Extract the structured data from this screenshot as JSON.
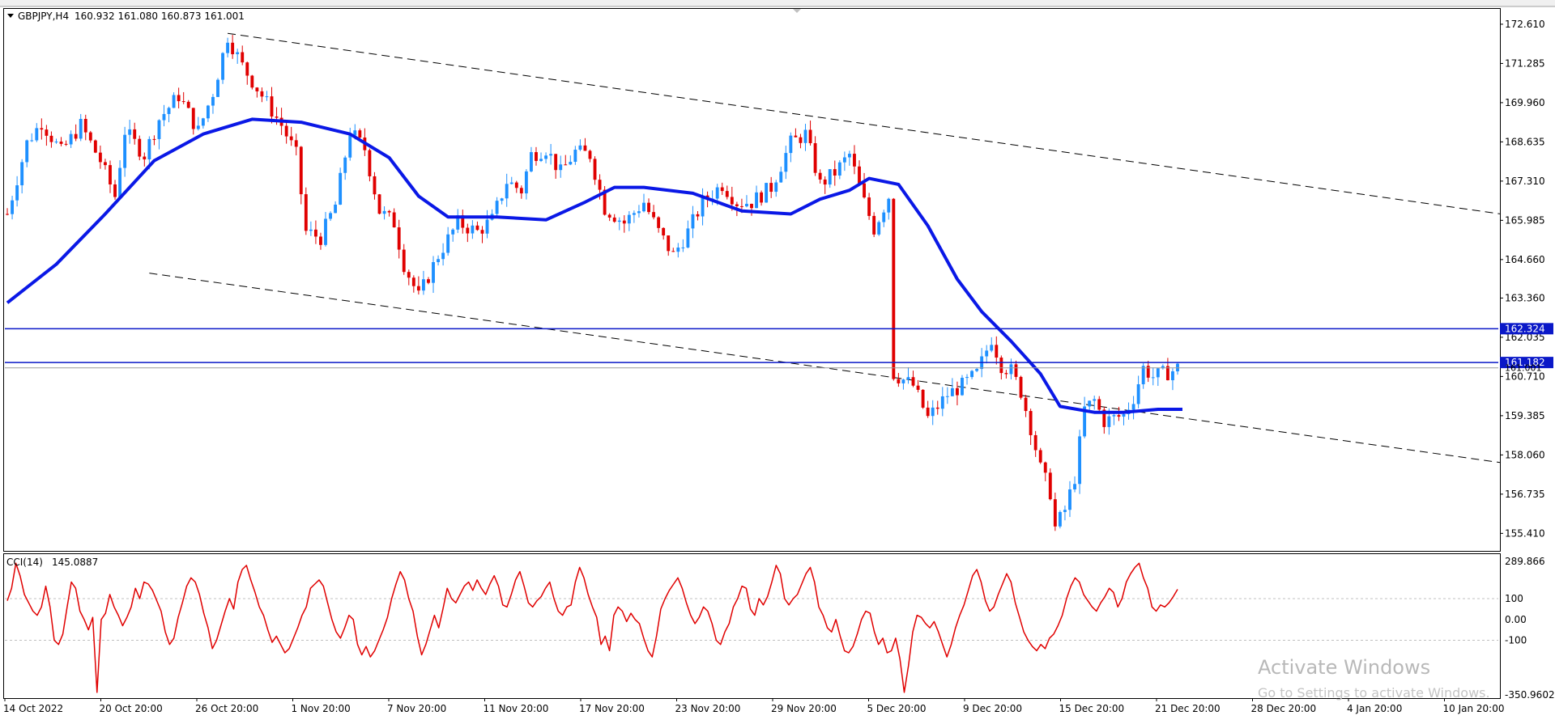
{
  "header": {
    "symbol_line": "GBPJPY,H4",
    "ohlc": "160.932 161.080 160.873 161.001"
  },
  "watermark": {
    "title": "Activate Windows",
    "subtitle": "Go to Settings to activate Windows."
  },
  "chart_data": [
    {
      "type": "candlestick",
      "symbol": "GBPJPY",
      "timeframe": "H4",
      "ylim": [
        154.9,
        173.1
      ],
      "y_ticks": [
        "172.610",
        "171.285",
        "169.960",
        "168.635",
        "167.310",
        "165.985",
        "164.660",
        "163.360",
        "162.035",
        "160.710",
        "159.385",
        "158.060",
        "156.735",
        "155.410"
      ],
      "x_ticks": [
        "14 Oct 2022",
        "20 Oct 20:00",
        "26 Oct 20:00",
        "1 Nov 20:00",
        "7 Nov 20:00",
        "11 Nov 20:00",
        "17 Nov 20:00",
        "23 Nov 20:00",
        "29 Nov 20:00",
        "5 Dec 20:00",
        "9 Dec 20:00",
        "15 Dec 20:00",
        "21 Dec 20:00",
        "28 Dec 20:00",
        "4 Jan 20:00",
        "10 Jan 20:00"
      ],
      "price_path": [
        [
          0,
          166.2
        ],
        [
          4,
          168.6
        ],
        [
          7,
          169.3
        ],
        [
          11,
          168.3
        ],
        [
          15,
          169.2
        ],
        [
          19,
          168.0
        ],
        [
          22,
          166.8
        ],
        [
          24,
          169.0
        ],
        [
          28,
          168.2
        ],
        [
          31,
          169.4
        ],
        [
          35,
          170.2
        ],
        [
          39,
          169.0
        ],
        [
          42,
          170.3
        ],
        [
          45,
          172.2
        ],
        [
          48,
          171.2
        ],
        [
          52,
          170.2
        ],
        [
          56,
          169.2
        ],
        [
          59,
          168.2
        ],
        [
          61,
          165.6
        ],
        [
          64,
          165.4
        ],
        [
          67,
          166.5
        ],
        [
          70,
          169.0
        ],
        [
          73,
          168.4
        ],
        [
          76,
          166.3
        ],
        [
          79,
          165.9
        ],
        [
          81,
          164.5
        ],
        [
          84,
          163.4
        ],
        [
          88,
          164.8
        ],
        [
          92,
          165.9
        ],
        [
          96,
          165.6
        ],
        [
          99,
          166.0
        ],
        [
          102,
          167.3
        ],
        [
          105,
          167.0
        ],
        [
          107,
          168.2
        ],
        [
          110,
          168.4
        ],
        [
          113,
          167.6
        ],
        [
          116,
          168.3
        ],
        [
          119,
          168.2
        ],
        [
          122,
          166.4
        ],
        [
          126,
          165.9
        ],
        [
          130,
          166.6
        ],
        [
          133,
          165.6
        ],
        [
          136,
          164.8
        ],
        [
          139,
          165.6
        ],
        [
          142,
          166.6
        ],
        [
          146,
          167.2
        ],
        [
          149,
          166.6
        ],
        [
          152,
          166.6
        ],
        [
          156,
          167.1
        ],
        [
          160,
          168.6
        ],
        [
          163,
          168.9
        ],
        [
          166,
          167.2
        ],
        [
          169,
          167.6
        ],
        [
          172,
          168.2
        ],
        [
          175,
          166.6
        ],
        [
          177,
          165.7
        ],
        [
          180,
          166.8
        ],
        [
          181,
          160.8
        ],
        [
          185,
          160.4
        ],
        [
          188,
          159.3
        ],
        [
          192,
          160.1
        ],
        [
          195,
          160.4
        ],
        [
          198,
          160.8
        ],
        [
          201,
          162.0
        ],
        [
          203,
          161.1
        ],
        [
          205,
          160.9
        ],
        [
          207,
          160.2
        ],
        [
          209,
          159.0
        ],
        [
          211,
          157.6
        ],
        [
          213,
          156.8
        ],
        [
          214,
          155.6
        ],
        [
          216,
          156.2
        ],
        [
          218,
          157.3
        ],
        [
          220,
          159.6
        ],
        [
          222,
          159.9
        ],
        [
          224,
          159.2
        ],
        [
          226,
          159.3
        ],
        [
          228,
          159.4
        ],
        [
          230,
          160.0
        ],
        [
          232,
          161.0
        ],
        [
          234,
          160.7
        ],
        [
          236,
          160.8
        ],
        [
          238,
          160.9
        ],
        [
          239,
          161.0
        ]
      ],
      "moving_average": {
        "label": "MA",
        "points": [
          [
            0,
            163.2
          ],
          [
            10,
            164.5
          ],
          [
            20,
            166.2
          ],
          [
            30,
            168.0
          ],
          [
            40,
            168.9
          ],
          [
            50,
            169.4
          ],
          [
            60,
            169.3
          ],
          [
            70,
            168.9
          ],
          [
            78,
            168.1
          ],
          [
            84,
            166.8
          ],
          [
            90,
            166.1
          ],
          [
            100,
            166.1
          ],
          [
            110,
            166.0
          ],
          [
            118,
            166.6
          ],
          [
            124,
            167.1
          ],
          [
            130,
            167.1
          ],
          [
            140,
            166.9
          ],
          [
            150,
            166.3
          ],
          [
            160,
            166.2
          ],
          [
            166,
            166.7
          ],
          [
            172,
            167.0
          ],
          [
            176,
            167.4
          ],
          [
            182,
            167.2
          ],
          [
            188,
            165.8
          ],
          [
            194,
            164.0
          ],
          [
            199,
            162.9
          ],
          [
            205,
            161.9
          ],
          [
            211,
            160.8
          ],
          [
            215,
            159.7
          ],
          [
            222,
            159.5
          ],
          [
            228,
            159.5
          ],
          [
            235,
            159.6
          ],
          [
            240,
            159.6
          ]
        ]
      },
      "horizontal_levels": [
        {
          "label": "162.324",
          "value": 162.324
        },
        {
          "label": "161.182",
          "value": 161.182
        },
        {
          "label": "161.001",
          "value": 161.001
        }
      ],
      "trendlines": [
        {
          "from": [
            45,
            172.3
          ],
          "to": [
            305,
            166.2
          ]
        },
        {
          "from": [
            29,
            164.2
          ],
          "to": [
            305,
            157.8
          ]
        }
      ]
    },
    {
      "type": "line",
      "indicator": "CCI(14)",
      "current_value": "145.0887",
      "ylim": [
        -370,
        310
      ],
      "y_ticks": [
        "289.866",
        "100",
        "0.00",
        "-100",
        "-350.9602"
      ],
      "levels": [
        100,
        -100
      ],
      "values": [
        90,
        150,
        270,
        210,
        120,
        80,
        40,
        20,
        60,
        160,
        60,
        -100,
        -120,
        -70,
        60,
        180,
        150,
        40,
        0,
        -50,
        10,
        -350,
        0,
        30,
        120,
        60,
        20,
        -30,
        10,
        60,
        150,
        100,
        180,
        170,
        140,
        90,
        40,
        -60,
        -120,
        -90,
        10,
        80,
        160,
        200,
        180,
        120,
        30,
        -40,
        -140,
        -100,
        -30,
        40,
        100,
        50,
        180,
        240,
        260,
        190,
        130,
        60,
        20,
        -50,
        -110,
        -80,
        -120,
        -160,
        -140,
        -90,
        -40,
        20,
        60,
        150,
        170,
        190,
        160,
        80,
        0,
        -60,
        -90,
        -40,
        20,
        0,
        -120,
        -170,
        -130,
        -180,
        -150,
        -100,
        -50,
        10,
        100,
        170,
        230,
        190,
        100,
        40,
        -80,
        -170,
        -120,
        -50,
        20,
        -40,
        50,
        150,
        100,
        80,
        120,
        160,
        180,
        140,
        190,
        150,
        120,
        170,
        210,
        160,
        70,
        60,
        120,
        190,
        230,
        160,
        80,
        60,
        90,
        110,
        150,
        180,
        100,
        40,
        20,
        60,
        70,
        180,
        250,
        200,
        120,
        60,
        10,
        -120,
        -80,
        -150,
        20,
        60,
        40,
        -10,
        30,
        0,
        -20,
        -90,
        -150,
        -180,
        -80,
        50,
        100,
        140,
        170,
        200,
        150,
        80,
        20,
        -20,
        10,
        60,
        40,
        -20,
        -100,
        -120,
        -60,
        -20,
        60,
        100,
        160,
        150,
        50,
        20,
        100,
        70,
        110,
        180,
        260,
        220,
        100,
        70,
        100,
        120,
        170,
        220,
        250,
        180,
        60,
        20,
        -40,
        -60,
        0,
        -80,
        -150,
        -160,
        -130,
        -70,
        0,
        40,
        30,
        -60,
        -120,
        -90,
        -160,
        -150,
        -90,
        -190,
        -350,
        -220,
        -60,
        20,
        10,
        -20,
        -40,
        -10,
        -60,
        -120,
        -180,
        -120,
        -40,
        20,
        70,
        140,
        210,
        240,
        180,
        90,
        40,
        60,
        120,
        170,
        220,
        180,
        80,
        10,
        -60,
        -100,
        -130,
        -150,
        -120,
        -140,
        -90,
        -70,
        -30,
        20,
        100,
        160,
        200,
        180,
        120,
        90,
        60,
        40,
        80,
        110,
        150,
        130,
        60,
        100,
        180,
        220,
        250,
        270,
        200,
        150,
        60,
        40,
        70,
        60,
        80,
        110,
        145
      ]
    }
  ]
}
